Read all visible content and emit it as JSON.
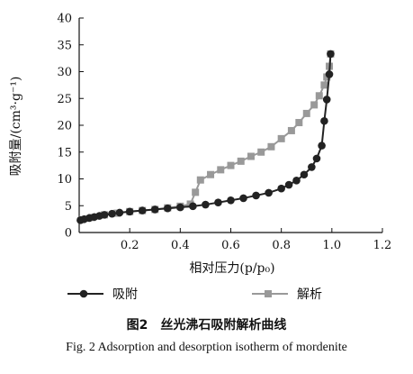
{
  "chart_data": {
    "type": "line",
    "title": "",
    "xlabel": "相对压力(p/p₀)",
    "ylabel": "吸附量/(cm³·g⁻¹)",
    "xlim": [
      0,
      1.2
    ],
    "ylim": [
      0,
      40
    ],
    "x_ticks": [
      "0.2",
      "0.4",
      "0.6",
      "0.8",
      "1.0",
      "1.2"
    ],
    "y_ticks": [
      "0",
      "5",
      "10",
      "15",
      "20",
      "25",
      "30",
      "35",
      "40"
    ],
    "grid": false,
    "legend_position": "bottom",
    "series": [
      {
        "name": "吸附",
        "color": "#222222",
        "marker": "circle",
        "points": [
          [
            0.005,
            2.3
          ],
          [
            0.02,
            2.5
          ],
          [
            0.04,
            2.7
          ],
          [
            0.06,
            2.9
          ],
          [
            0.08,
            3.1
          ],
          [
            0.1,
            3.3
          ],
          [
            0.13,
            3.5
          ],
          [
            0.16,
            3.7
          ],
          [
            0.2,
            3.9
          ],
          [
            0.25,
            4.1
          ],
          [
            0.3,
            4.3
          ],
          [
            0.35,
            4.5
          ],
          [
            0.4,
            4.7
          ],
          [
            0.45,
            4.9
          ],
          [
            0.5,
            5.2
          ],
          [
            0.55,
            5.6
          ],
          [
            0.6,
            6.0
          ],
          [
            0.65,
            6.4
          ],
          [
            0.7,
            6.9
          ],
          [
            0.75,
            7.4
          ],
          [
            0.8,
            8.2
          ],
          [
            0.83,
            8.9
          ],
          [
            0.86,
            9.7
          ],
          [
            0.89,
            10.8
          ],
          [
            0.92,
            12.2
          ],
          [
            0.94,
            13.8
          ],
          [
            0.96,
            16.2
          ],
          [
            0.97,
            20.8
          ],
          [
            0.98,
            24.8
          ],
          [
            0.99,
            29.5
          ],
          [
            0.995,
            33.3
          ]
        ]
      },
      {
        "name": "解析",
        "color": "#999999",
        "marker": "square",
        "points": [
          [
            0.995,
            33.3
          ],
          [
            0.99,
            31.0
          ],
          [
            0.98,
            29.0
          ],
          [
            0.97,
            27.5
          ],
          [
            0.95,
            25.5
          ],
          [
            0.93,
            23.8
          ],
          [
            0.9,
            22.2
          ],
          [
            0.87,
            20.5
          ],
          [
            0.84,
            19.0
          ],
          [
            0.8,
            17.5
          ],
          [
            0.76,
            16.0
          ],
          [
            0.72,
            15.0
          ],
          [
            0.68,
            14.2
          ],
          [
            0.64,
            13.3
          ],
          [
            0.6,
            12.5
          ],
          [
            0.56,
            11.7
          ],
          [
            0.52,
            10.8
          ],
          [
            0.48,
            9.8
          ],
          [
            0.46,
            7.5
          ],
          [
            0.44,
            5.3
          ],
          [
            0.4,
            4.9
          ],
          [
            0.35,
            4.6
          ],
          [
            0.3,
            4.3
          ],
          [
            0.25,
            4.1
          ],
          [
            0.2,
            3.9
          ],
          [
            0.15,
            3.6
          ],
          [
            0.1,
            3.3
          ],
          [
            0.05,
            2.8
          ],
          [
            0.01,
            2.4
          ]
        ]
      }
    ]
  },
  "caption": {
    "zh": "图2　丝光沸石吸附解析曲线",
    "en": "Fig. 2 Adsorption and desorption isotherm of mordenite"
  }
}
